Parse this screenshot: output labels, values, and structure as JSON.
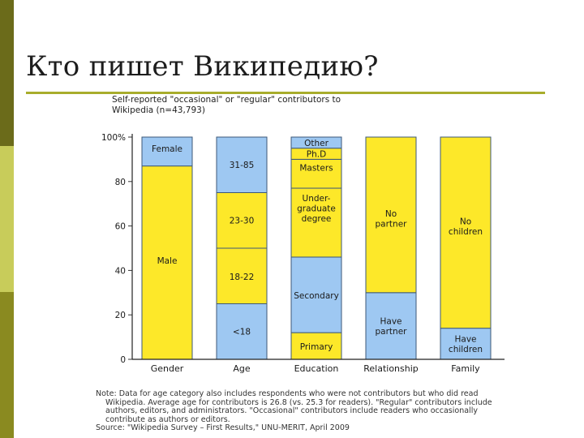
{
  "slide": {
    "title": "Кто пишет Википедию?"
  },
  "chart_data": {
    "type": "bar",
    "stacked": true,
    "normalized": true,
    "title": "Self-reported \"occasional\" or \"regular\" contributors to Wikipedia (n=43,793)",
    "categories": [
      "Gender",
      "Age",
      "Education",
      "Relationship",
      "Family"
    ],
    "yticks": [
      "100%",
      "80",
      "60",
      "40",
      "20",
      "0"
    ],
    "ylim": [
      0,
      100
    ],
    "grid": false,
    "colors": {
      "blue": "#9ec8f2",
      "yellow": "#fde829",
      "outline": "#3d5878"
    },
    "stacks": [
      {
        "category": "Gender",
        "segments": [
          {
            "label": "Male",
            "value": 87,
            "color": "yellow"
          },
          {
            "label": "Female",
            "value": 13,
            "color": "blue"
          }
        ]
      },
      {
        "category": "Age",
        "segments": [
          {
            "label": "<18",
            "value": 25,
            "color": "blue"
          },
          {
            "label": "18-22",
            "value": 25,
            "color": "yellow"
          },
          {
            "label": "23-30",
            "value": 25,
            "color": "yellow"
          },
          {
            "label": "31-85",
            "value": 25,
            "color": "blue"
          }
        ]
      },
      {
        "category": "Education",
        "segments": [
          {
            "label": "Primary",
            "value": 12,
            "color": "yellow"
          },
          {
            "label": "Secondary",
            "value": 34,
            "color": "blue"
          },
          {
            "label": "Under- graduate degree",
            "value": 31,
            "color": "yellow"
          },
          {
            "label": "Masters",
            "value": 13,
            "color": "yellow"
          },
          {
            "label": "Ph.D",
            "value": 5,
            "color": "yellow"
          },
          {
            "label": "Other",
            "value": 5,
            "color": "blue"
          }
        ]
      },
      {
        "category": "Relationship",
        "segments": [
          {
            "label": "Have partner",
            "value": 30,
            "color": "blue"
          },
          {
            "label": "No partner",
            "value": 70,
            "color": "yellow"
          }
        ]
      },
      {
        "category": "Family",
        "segments": [
          {
            "label": "Have children",
            "value": 14,
            "color": "blue"
          },
          {
            "label": "No children",
            "value": 86,
            "color": "yellow"
          }
        ]
      }
    ],
    "note": [
      "Note: Data for age category also includes respondents who were not contributors but who did read",
      "Wikipedia. Average age for contributors is 26.8 (vs. 25.3 for readers). \"Regular\" contributors include",
      "authors, editors, and administrators. \"Occasional\" contributors include readers who occasionally",
      "contribute as authors or editors."
    ],
    "source": "Source: \"Wikipedia Survey – First Results,\" UNU-MERIT, April 2009"
  }
}
